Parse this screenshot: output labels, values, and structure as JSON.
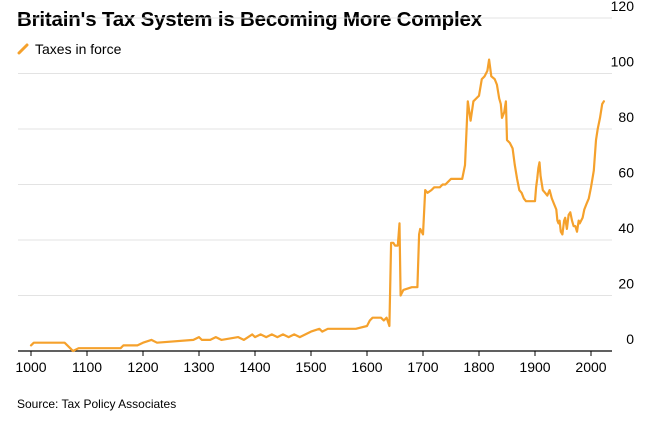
{
  "title": "Britain's Tax System is Becoming More Complex",
  "source": "Source: Tax Policy Associates",
  "colors": {
    "series": "#f5a12c",
    "grid": "#e3e3e3",
    "axis": "#000000",
    "text": "#000000"
  },
  "chart_data": {
    "type": "line",
    "title": "Britain's Tax System is Becoming More Complex",
    "xlabel": "",
    "ylabel": "",
    "xlim": [
      980,
      2035
    ],
    "ylim": [
      0,
      120
    ],
    "x_ticks": [
      1000,
      1100,
      1200,
      1300,
      1400,
      1500,
      1600,
      1700,
      1800,
      1900,
      2000
    ],
    "y_ticks": [
      0,
      20,
      40,
      60,
      80,
      100,
      120
    ],
    "y_axis_side": "right",
    "grid": "horizontal",
    "legend_position": "top-left",
    "series": [
      {
        "name": "Taxes in force",
        "color": "#f5a12c",
        "points": [
          [
            1000,
            2
          ],
          [
            1005,
            3
          ],
          [
            1060,
            3
          ],
          [
            1065,
            2
          ],
          [
            1070,
            1
          ],
          [
            1075,
            0
          ],
          [
            1085,
            1
          ],
          [
            1160,
            1
          ],
          [
            1165,
            2
          ],
          [
            1190,
            2
          ],
          [
            1200,
            3
          ],
          [
            1215,
            4
          ],
          [
            1225,
            3
          ],
          [
            1290,
            4
          ],
          [
            1300,
            5
          ],
          [
            1305,
            4
          ],
          [
            1320,
            4
          ],
          [
            1330,
            5
          ],
          [
            1340,
            4
          ],
          [
            1370,
            5
          ],
          [
            1380,
            4
          ],
          [
            1395,
            6
          ],
          [
            1400,
            5
          ],
          [
            1410,
            6
          ],
          [
            1420,
            5
          ],
          [
            1430,
            6
          ],
          [
            1440,
            5
          ],
          [
            1450,
            6
          ],
          [
            1460,
            5
          ],
          [
            1470,
            6
          ],
          [
            1480,
            5
          ],
          [
            1490,
            6
          ],
          [
            1500,
            7
          ],
          [
            1515,
            8
          ],
          [
            1520,
            7
          ],
          [
            1530,
            8
          ],
          [
            1580,
            8
          ],
          [
            1600,
            9
          ],
          [
            1605,
            11
          ],
          [
            1610,
            12
          ],
          [
            1625,
            12
          ],
          [
            1630,
            11
          ],
          [
            1635,
            12
          ],
          [
            1640,
            9
          ],
          [
            1643,
            39
          ],
          [
            1647,
            39
          ],
          [
            1650,
            38
          ],
          [
            1655,
            38
          ],
          [
            1658,
            46
          ],
          [
            1660,
            20
          ],
          [
            1665,
            22
          ],
          [
            1680,
            23
          ],
          [
            1690,
            23
          ],
          [
            1693,
            42
          ],
          [
            1695,
            44
          ],
          [
            1700,
            42
          ],
          [
            1704,
            58
          ],
          [
            1708,
            57
          ],
          [
            1715,
            58
          ],
          [
            1720,
            59
          ],
          [
            1730,
            59
          ],
          [
            1735,
            60
          ],
          [
            1740,
            60
          ],
          [
            1745,
            61
          ],
          [
            1750,
            62
          ],
          [
            1760,
            62
          ],
          [
            1770,
            62
          ],
          [
            1775,
            67
          ],
          [
            1780,
            90
          ],
          [
            1785,
            83
          ],
          [
            1790,
            90
          ],
          [
            1795,
            91
          ],
          [
            1800,
            92
          ],
          [
            1805,
            98
          ],
          [
            1810,
            99
          ],
          [
            1815,
            101
          ],
          [
            1818,
            105
          ],
          [
            1822,
            99
          ],
          [
            1828,
            98
          ],
          [
            1832,
            96
          ],
          [
            1836,
            91
          ],
          [
            1839,
            89
          ],
          [
            1841,
            84
          ],
          [
            1845,
            86
          ],
          [
            1848,
            90
          ],
          [
            1850,
            76
          ],
          [
            1855,
            75
          ],
          [
            1860,
            73
          ],
          [
            1864,
            67
          ],
          [
            1868,
            62
          ],
          [
            1872,
            58
          ],
          [
            1876,
            57
          ],
          [
            1880,
            55
          ],
          [
            1884,
            54
          ],
          [
            1890,
            54
          ],
          [
            1895,
            54
          ],
          [
            1900,
            54
          ],
          [
            1902,
            59
          ],
          [
            1904,
            62
          ],
          [
            1906,
            66
          ],
          [
            1908,
            68
          ],
          [
            1910,
            63
          ],
          [
            1914,
            58
          ],
          [
            1918,
            57
          ],
          [
            1922,
            56
          ],
          [
            1926,
            58
          ],
          [
            1930,
            55
          ],
          [
            1934,
            53
          ],
          [
            1938,
            51
          ],
          [
            1940,
            47
          ],
          [
            1942,
            46
          ],
          [
            1944,
            47
          ],
          [
            1946,
            43
          ],
          [
            1949,
            42
          ],
          [
            1952,
            47
          ],
          [
            1954,
            48
          ],
          [
            1957,
            44
          ],
          [
            1960,
            49
          ],
          [
            1963,
            50
          ],
          [
            1966,
            47
          ],
          [
            1969,
            45
          ],
          [
            1972,
            45
          ],
          [
            1975,
            43
          ],
          [
            1978,
            47
          ],
          [
            1980,
            46
          ],
          [
            1985,
            48
          ],
          [
            1988,
            51
          ],
          [
            1992,
            53
          ],
          [
            1996,
            55
          ],
          [
            2000,
            59
          ],
          [
            2005,
            65
          ],
          [
            2009,
            76
          ],
          [
            2012,
            80
          ],
          [
            2016,
            84
          ],
          [
            2020,
            89
          ],
          [
            2023,
            90
          ]
        ]
      }
    ]
  }
}
